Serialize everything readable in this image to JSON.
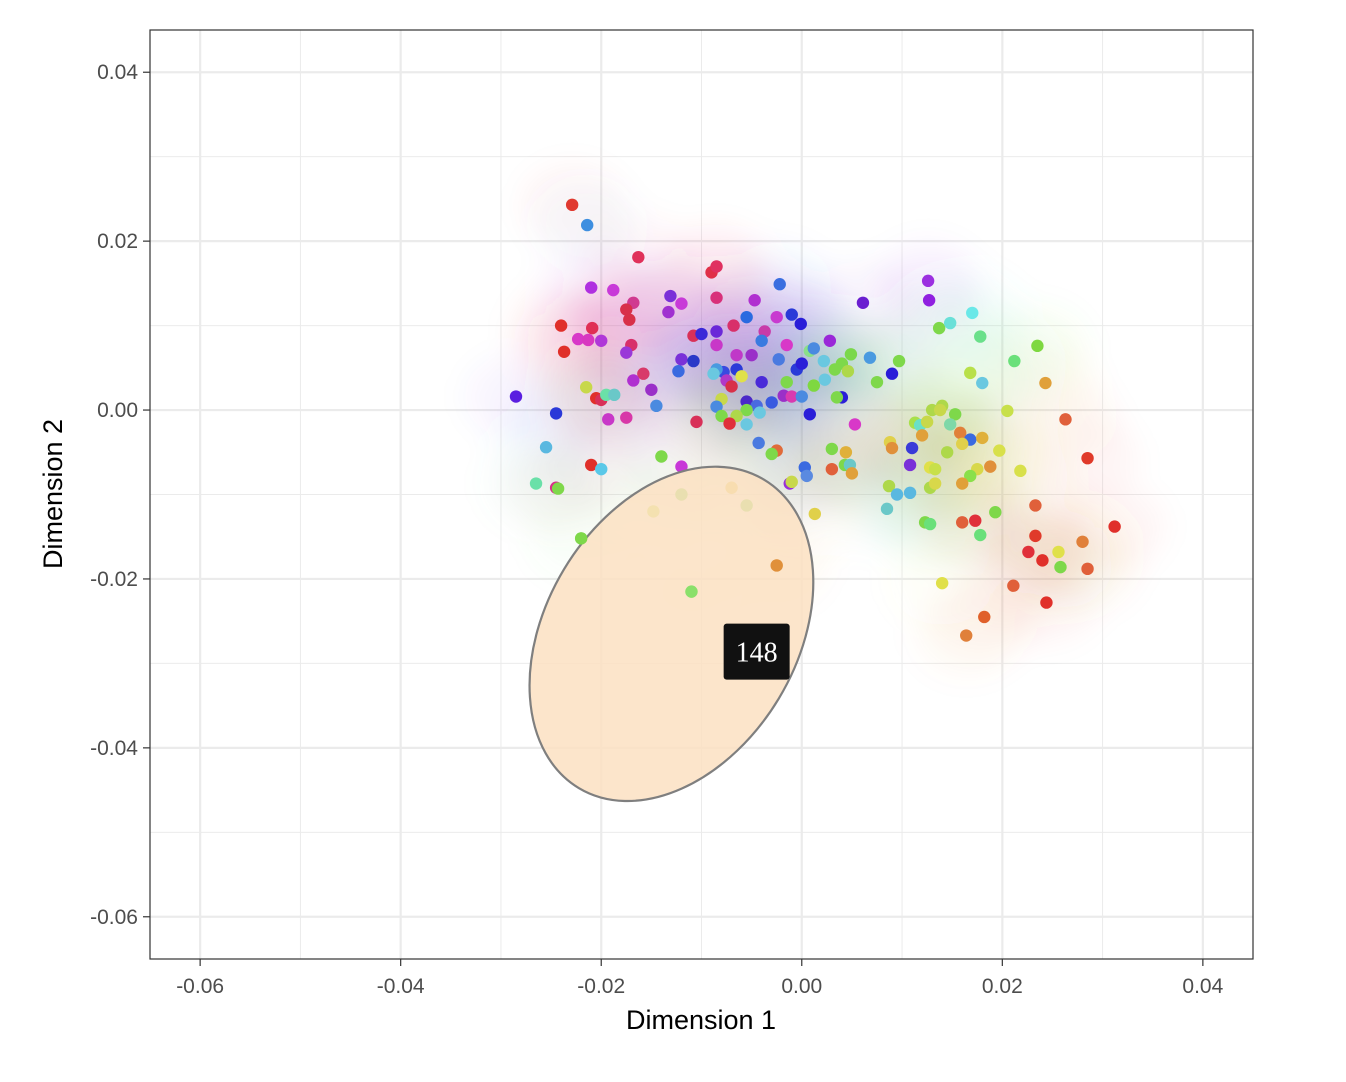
{
  "chart_data": {
    "type": "scatter",
    "xlabel": "Dimension 1",
    "ylabel": "Dimension 2",
    "xlim": [
      -0.065,
      0.045
    ],
    "ylim": [
      -0.065,
      0.045
    ],
    "x_ticks": [
      -0.06,
      -0.04,
      -0.02,
      0.0,
      0.02,
      0.04
    ],
    "y_ticks": [
      -0.06,
      -0.04,
      -0.02,
      0.0,
      0.02,
      0.04
    ],
    "x_tick_labels": [
      "-0.06",
      "-0.04",
      "-0.02",
      "0.00",
      "0.02",
      "0.04"
    ],
    "y_tick_labels": [
      "-0.06",
      "-0.04",
      "-0.02",
      "0.00",
      "0.02",
      "0.04"
    ],
    "grid": true,
    "background": "#ffffff",
    "grid_color": "#ebebeb",
    "highlight": {
      "label": "148",
      "ellipse": {
        "cx": -0.013,
        "cy": -0.0265,
        "rx": 0.0125,
        "ry": 0.0213,
        "angle": 31
      },
      "fill": "#fbe0c2",
      "stroke": "#7f7f7f",
      "tooltip_anchor": {
        "x": -0.0045,
        "y": -0.0286
      }
    },
    "points": [
      {
        "x": -0.0229,
        "y": 0.0243,
        "c": "#e03a30"
      },
      {
        "x": -0.0214,
        "y": 0.0219,
        "c": "#3e8fe0"
      },
      {
        "x": -0.0163,
        "y": 0.0181,
        "c": "#e0305a"
      },
      {
        "x": -0.009,
        "y": 0.0163,
        "c": "#e03048"
      },
      {
        "x": -0.0085,
        "y": 0.017,
        "c": "#e03060"
      },
      {
        "x": -0.0022,
        "y": 0.0149,
        "c": "#3a6ee0"
      },
      {
        "x": 0.0126,
        "y": 0.0153,
        "c": "#9b30e0"
      },
      {
        "x": -0.021,
        "y": 0.0145,
        "c": "#b030e0"
      },
      {
        "x": -0.0188,
        "y": 0.0142,
        "c": "#c83ad8"
      },
      {
        "x": -0.0168,
        "y": 0.0127,
        "c": "#d03a90"
      },
      {
        "x": -0.0131,
        "y": 0.0135,
        "c": "#7a30d8"
      },
      {
        "x": -0.0085,
        "y": 0.0133,
        "c": "#d8307a"
      },
      {
        "x": -0.0047,
        "y": 0.013,
        "c": "#b030d0"
      },
      {
        "x": 0.0061,
        "y": 0.0127,
        "c": "#6a1ed0"
      },
      {
        "x": 0.0127,
        "y": 0.013,
        "c": "#9020e0"
      },
      {
        "x": -0.0175,
        "y": 0.0119,
        "c": "#d8304a"
      },
      {
        "x": -0.012,
        "y": 0.0126,
        "c": "#c83ad8"
      },
      {
        "x": -0.0133,
        "y": 0.0116,
        "c": "#a030d0"
      },
      {
        "x": -0.0172,
        "y": 0.0107,
        "c": "#d83048"
      },
      {
        "x": -0.024,
        "y": 0.01,
        "c": "#e0302a"
      },
      {
        "x": -0.0209,
        "y": 0.0097,
        "c": "#e03055"
      },
      {
        "x": -0.0055,
        "y": 0.011,
        "c": "#2a6ae0"
      },
      {
        "x": -0.001,
        "y": 0.0113,
        "c": "#2a3ad8"
      },
      {
        "x": -0.0025,
        "y": 0.011,
        "c": "#c83ad0"
      },
      {
        "x": -0.0001,
        "y": 0.0102,
        "c": "#2a1ed8"
      },
      {
        "x": 0.0137,
        "y": 0.0097,
        "c": "#7ed84a"
      },
      {
        "x": 0.0148,
        "y": 0.0103,
        "c": "#6ae0d8"
      },
      {
        "x": 0.017,
        "y": 0.0115,
        "c": "#6ae8e8"
      },
      {
        "x": 0.0178,
        "y": 0.0087,
        "c": "#6ae08a"
      },
      {
        "x": -0.0223,
        "y": 0.0084,
        "c": "#d838c8"
      },
      {
        "x": -0.02,
        "y": 0.0082,
        "c": "#b038d8"
      },
      {
        "x": -0.0213,
        "y": 0.0083,
        "c": "#d838c0"
      },
      {
        "x": -0.017,
        "y": 0.0077,
        "c": "#d8306a"
      },
      {
        "x": -0.0237,
        "y": 0.0069,
        "c": "#e0302a"
      },
      {
        "x": -0.0175,
        "y": 0.0068,
        "c": "#9a38d8"
      },
      {
        "x": -0.0108,
        "y": 0.0088,
        "c": "#d83058"
      },
      {
        "x": -0.01,
        "y": 0.009,
        "c": "#3a28d8"
      },
      {
        "x": -0.0085,
        "y": 0.0093,
        "c": "#6a28d8"
      },
      {
        "x": -0.0068,
        "y": 0.01,
        "c": "#d8306a"
      },
      {
        "x": -0.0037,
        "y": 0.0093,
        "c": "#c83aa8"
      },
      {
        "x": -0.004,
        "y": 0.0082,
        "c": "#3a7ae0"
      },
      {
        "x": -0.0015,
        "y": 0.0077,
        "c": "#d838c8"
      },
      {
        "x": 0.0028,
        "y": 0.0082,
        "c": "#9a28d8"
      },
      {
        "x": -0.0085,
        "y": 0.0077,
        "c": "#c838c8"
      },
      {
        "x": 0.0008,
        "y": 0.007,
        "c": "#8ae08a"
      },
      {
        "x": 0.0012,
        "y": 0.0073,
        "c": "#4a8ae0"
      },
      {
        "x": 0.0049,
        "y": 0.0066,
        "c": "#7ad84a"
      },
      {
        "x": 0.0068,
        "y": 0.0062,
        "c": "#4a9ae0"
      },
      {
        "x": 0.0097,
        "y": 0.0058,
        "c": "#7ed84a"
      },
      {
        "x": 0.0212,
        "y": 0.0058,
        "c": "#6ae07a"
      },
      {
        "x": 0.0235,
        "y": 0.0076,
        "c": "#7ed840"
      },
      {
        "x": -0.012,
        "y": 0.006,
        "c": "#7a30d8"
      },
      {
        "x": -0.0108,
        "y": 0.0058,
        "c": "#2a38c8"
      },
      {
        "x": -0.0123,
        "y": 0.0046,
        "c": "#3a6ae0"
      },
      {
        "x": -0.0065,
        "y": 0.0065,
        "c": "#c038c8"
      },
      {
        "x": -0.005,
        "y": 0.0065,
        "c": "#9a30c8"
      },
      {
        "x": -0.0023,
        "y": 0.006,
        "c": "#4a7ae0"
      },
      {
        "x": -0.0005,
        "y": 0.0048,
        "c": "#2a3ad8"
      },
      {
        "x": 0.0,
        "y": 0.0055,
        "c": "#2a1ed8"
      },
      {
        "x": 0.0022,
        "y": 0.0058,
        "c": "#6ac8e0"
      },
      {
        "x": 0.004,
        "y": 0.0055,
        "c": "#7ed84a"
      },
      {
        "x": 0.009,
        "y": 0.0043,
        "c": "#2a1ed8"
      },
      {
        "x": -0.0158,
        "y": 0.0043,
        "c": "#d83a6a"
      },
      {
        "x": -0.0078,
        "y": 0.0045,
        "c": "#3a4ae0"
      },
      {
        "x": -0.0065,
        "y": 0.0048,
        "c": "#2a3ad8"
      },
      {
        "x": -0.0085,
        "y": 0.0048,
        "c": "#4a9ae0"
      },
      {
        "x": -0.0088,
        "y": 0.0043,
        "c": "#6ac8e0"
      },
      {
        "x": -0.006,
        "y": 0.004,
        "c": "#e0e04a"
      },
      {
        "x": 0.0033,
        "y": 0.0048,
        "c": "#7ed84a"
      },
      {
        "x": 0.0046,
        "y": 0.0046,
        "c": "#aed84a"
      },
      {
        "x": 0.0023,
        "y": 0.0036,
        "c": "#6ac8e0"
      },
      {
        "x": 0.0012,
        "y": 0.0029,
        "c": "#7ed840"
      },
      {
        "x": 0.0075,
        "y": 0.0033,
        "c": "#7ed84a"
      },
      {
        "x": 0.0168,
        "y": 0.0044,
        "c": "#b8e04a"
      },
      {
        "x": 0.018,
        "y": 0.0032,
        "c": "#6ac8e0"
      },
      {
        "x": 0.0243,
        "y": 0.0032,
        "c": "#e0a03a"
      },
      {
        "x": -0.0215,
        "y": 0.0027,
        "c": "#c8d84a"
      },
      {
        "x": -0.0168,
        "y": 0.0035,
        "c": "#b030d0"
      },
      {
        "x": -0.015,
        "y": 0.0024,
        "c": "#9a30c8"
      },
      {
        "x": -0.0075,
        "y": 0.0035,
        "c": "#b038c8"
      },
      {
        "x": -0.004,
        "y": 0.0033,
        "c": "#4a2ad8"
      },
      {
        "x": -0.0015,
        "y": 0.0033,
        "c": "#7ed84a"
      },
      {
        "x": -0.007,
        "y": 0.0028,
        "c": "#d83048"
      },
      {
        "x": -0.008,
        "y": 0.0013,
        "c": "#c8d84a"
      },
      {
        "x": -0.0018,
        "y": 0.0017,
        "c": "#9a30c8"
      },
      {
        "x": -0.001,
        "y": 0.0016,
        "c": "#d83ab0"
      },
      {
        "x": 0.0,
        "y": 0.0016,
        "c": "#4a8ae0"
      },
      {
        "x": 0.004,
        "y": 0.0015,
        "c": "#2a1ed8"
      },
      {
        "x": 0.0035,
        "y": 0.0015,
        "c": "#7ed84a"
      },
      {
        "x": -0.0285,
        "y": 0.0016,
        "c": "#5a1ee0"
      },
      {
        "x": -0.0205,
        "y": 0.0014,
        "c": "#e0302a"
      },
      {
        "x": -0.02,
        "y": 0.0012,
        "c": "#d83058"
      },
      {
        "x": -0.0195,
        "y": 0.0018,
        "c": "#6ae0a8"
      },
      {
        "x": -0.0187,
        "y": 0.0018,
        "c": "#6ac8c8"
      },
      {
        "x": -0.0145,
        "y": 0.0005,
        "c": "#4a8ae0"
      },
      {
        "x": -0.0085,
        "y": 0.0004,
        "c": "#4a8ae0"
      },
      {
        "x": -0.0055,
        "y": 0.001,
        "c": "#4a28c8"
      },
      {
        "x": -0.0045,
        "y": 0.0005,
        "c": "#4a6ae0"
      },
      {
        "x": -0.003,
        "y": 0.0009,
        "c": "#3a5ae0"
      },
      {
        "x": -0.0042,
        "y": -0.0003,
        "c": "#6ac8e0"
      },
      {
        "x": -0.0055,
        "y": 0.0,
        "c": "#7ed84a"
      },
      {
        "x": -0.0065,
        "y": -0.0007,
        "c": "#aed84a"
      },
      {
        "x": -0.008,
        "y": -0.0007,
        "c": "#7ed84a"
      },
      {
        "x": -0.0072,
        "y": -0.0016,
        "c": "#e0303a"
      },
      {
        "x": -0.0055,
        "y": -0.0017,
        "c": "#6ac8e0"
      },
      {
        "x": 0.0008,
        "y": -0.0005,
        "c": "#2a1ed8"
      },
      {
        "x": 0.0053,
        "y": -0.0017,
        "c": "#d838c8"
      },
      {
        "x": 0.014,
        "y": 0.0005,
        "c": "#aed84a"
      },
      {
        "x": 0.013,
        "y": 0.0,
        "c": "#aed84a"
      },
      {
        "x": 0.0138,
        "y": 0.0,
        "c": "#c8d84a"
      },
      {
        "x": 0.0153,
        "y": -0.0005,
        "c": "#7ed84a"
      },
      {
        "x": 0.0205,
        "y": -0.0001,
        "c": "#c8e04a"
      },
      {
        "x": 0.0263,
        "y": -0.0011,
        "c": "#e0603a"
      },
      {
        "x": -0.0245,
        "y": -0.0004,
        "c": "#2a38d8"
      },
      {
        "x": -0.0193,
        "y": -0.0011,
        "c": "#c838c8"
      },
      {
        "x": -0.0175,
        "y": -0.0009,
        "c": "#d838a8"
      },
      {
        "x": -0.0105,
        "y": -0.0014,
        "c": "#d83058"
      },
      {
        "x": -0.0043,
        "y": -0.0039,
        "c": "#4a7ae0"
      },
      {
        "x": -0.0025,
        "y": -0.0048,
        "c": "#e06a3a"
      },
      {
        "x": -0.003,
        "y": -0.0052,
        "c": "#7ed84a"
      },
      {
        "x": 0.003,
        "y": -0.0046,
        "c": "#7ed84a"
      },
      {
        "x": 0.0044,
        "y": -0.005,
        "c": "#e0b03a"
      },
      {
        "x": 0.011,
        "y": -0.0045,
        "c": "#3a3ad8"
      },
      {
        "x": 0.0113,
        "y": -0.0015,
        "c": "#a8e04a"
      },
      {
        "x": 0.0118,
        "y": -0.0018,
        "c": "#6ae0c8"
      },
      {
        "x": 0.0125,
        "y": -0.0014,
        "c": "#c8d84a"
      },
      {
        "x": 0.012,
        "y": -0.003,
        "c": "#e0a03a"
      },
      {
        "x": 0.0148,
        "y": -0.0017,
        "c": "#7ed8a8"
      },
      {
        "x": 0.0158,
        "y": -0.0027,
        "c": "#e0803a"
      },
      {
        "x": 0.0168,
        "y": -0.0035,
        "c": "#3a6ae0"
      },
      {
        "x": 0.016,
        "y": -0.004,
        "c": "#e0d04a"
      },
      {
        "x": 0.018,
        "y": -0.0033,
        "c": "#e0b03a"
      },
      {
        "x": 0.0088,
        "y": -0.0038,
        "c": "#e0d04a"
      },
      {
        "x": 0.009,
        "y": -0.0045,
        "c": "#e0903a"
      },
      {
        "x": 0.0145,
        "y": -0.005,
        "c": "#aed84a"
      },
      {
        "x": 0.0197,
        "y": -0.0048,
        "c": "#d8e04a"
      },
      {
        "x": -0.0255,
        "y": -0.0044,
        "c": "#5ab8e0"
      },
      {
        "x": -0.014,
        "y": -0.0055,
        "c": "#7ed84a"
      },
      {
        "x": -0.012,
        "y": -0.0067,
        "c": "#c838d8"
      },
      {
        "x": -0.021,
        "y": -0.0065,
        "c": "#e0302a"
      },
      {
        "x": -0.02,
        "y": -0.007,
        "c": "#5ac8e8"
      },
      {
        "x": 0.0003,
        "y": -0.0068,
        "c": "#3a6ae0"
      },
      {
        "x": 0.0005,
        "y": -0.0078,
        "c": "#5a8ae0"
      },
      {
        "x": 0.003,
        "y": -0.007,
        "c": "#e0603a"
      },
      {
        "x": 0.0043,
        "y": -0.0065,
        "c": "#7ed84a"
      },
      {
        "x": 0.0048,
        "y": -0.0065,
        "c": "#6ac8c8"
      },
      {
        "x": 0.005,
        "y": -0.0075,
        "c": "#e0a03a"
      },
      {
        "x": 0.0108,
        "y": -0.0065,
        "c": "#7a30d8"
      },
      {
        "x": 0.0128,
        "y": -0.0068,
        "c": "#e0e04a"
      },
      {
        "x": 0.0133,
        "y": -0.007,
        "c": "#c8e04a"
      },
      {
        "x": 0.0175,
        "y": -0.007,
        "c": "#d8d84a"
      },
      {
        "x": 0.0188,
        "y": -0.0067,
        "c": "#e0903a"
      },
      {
        "x": 0.0168,
        "y": -0.0078,
        "c": "#8ae04a"
      },
      {
        "x": 0.0218,
        "y": -0.0072,
        "c": "#d8e04a"
      },
      {
        "x": 0.0285,
        "y": -0.0057,
        "c": "#e03a2a"
      },
      {
        "x": -0.0265,
        "y": -0.0087,
        "c": "#6ae0a8"
      },
      {
        "x": -0.0245,
        "y": -0.0092,
        "c": "#d8308a"
      },
      {
        "x": -0.0243,
        "y": -0.0093,
        "c": "#7ed84a"
      },
      {
        "x": -0.012,
        "y": -0.01,
        "c": "#7ed84a"
      },
      {
        "x": -0.007,
        "y": -0.0092,
        "c": "#e0c84a"
      },
      {
        "x": -0.0012,
        "y": -0.0087,
        "c": "#9a30d8"
      },
      {
        "x": -0.001,
        "y": -0.0085,
        "c": "#c8d84a"
      },
      {
        "x": 0.0087,
        "y": -0.009,
        "c": "#aed84a"
      },
      {
        "x": 0.0095,
        "y": -0.01,
        "c": "#5ab8e0"
      },
      {
        "x": 0.0108,
        "y": -0.0098,
        "c": "#5ab8e0"
      },
      {
        "x": 0.0128,
        "y": -0.0092,
        "c": "#aed84a"
      },
      {
        "x": 0.0133,
        "y": -0.0087,
        "c": "#d8d84a"
      },
      {
        "x": 0.016,
        "y": -0.0087,
        "c": "#e0a03a"
      },
      {
        "x": 0.0085,
        "y": -0.0117,
        "c": "#6ac8c8"
      },
      {
        "x": -0.0055,
        "y": -0.0113,
        "c": "#7ed84a"
      },
      {
        "x": -0.0148,
        "y": -0.012,
        "c": "#c8e04a"
      },
      {
        "x": 0.0013,
        "y": -0.0123,
        "c": "#e0d04a"
      },
      {
        "x": 0.0123,
        "y": -0.0133,
        "c": "#7ed84a"
      },
      {
        "x": 0.0128,
        "y": -0.0135,
        "c": "#6ae07a"
      },
      {
        "x": 0.016,
        "y": -0.0133,
        "c": "#e0603a"
      },
      {
        "x": 0.0173,
        "y": -0.0131,
        "c": "#e0303a"
      },
      {
        "x": 0.0193,
        "y": -0.0121,
        "c": "#7ed84a"
      },
      {
        "x": 0.0233,
        "y": -0.0113,
        "c": "#e0603a"
      },
      {
        "x": 0.0178,
        "y": -0.0148,
        "c": "#6ae07a"
      },
      {
        "x": 0.0233,
        "y": -0.0149,
        "c": "#e03a2a"
      },
      {
        "x": 0.0312,
        "y": -0.0138,
        "c": "#e0302a"
      },
      {
        "x": -0.022,
        "y": -0.0152,
        "c": "#7ed84a"
      },
      {
        "x": 0.0226,
        "y": -0.0168,
        "c": "#e0303a"
      },
      {
        "x": 0.024,
        "y": -0.0178,
        "c": "#e0302a"
      },
      {
        "x": 0.0256,
        "y": -0.0168,
        "c": "#e0e04a"
      },
      {
        "x": 0.0258,
        "y": -0.0186,
        "c": "#7ed84a"
      },
      {
        "x": 0.028,
        "y": -0.0156,
        "c": "#e0803a"
      },
      {
        "x": 0.0285,
        "y": -0.0188,
        "c": "#e0603a"
      },
      {
        "x": -0.0025,
        "y": -0.0184,
        "c": "#e0903a"
      },
      {
        "x": -0.011,
        "y": -0.0215,
        "c": "#8ae06a"
      },
      {
        "x": 0.014,
        "y": -0.0205,
        "c": "#e0e04a"
      },
      {
        "x": 0.0211,
        "y": -0.0208,
        "c": "#e0603a"
      },
      {
        "x": 0.0244,
        "y": -0.0228,
        "c": "#e0302a"
      },
      {
        "x": 0.0182,
        "y": -0.0245,
        "c": "#e0602a"
      },
      {
        "x": 0.0164,
        "y": -0.0267,
        "c": "#e0803a"
      }
    ]
  }
}
